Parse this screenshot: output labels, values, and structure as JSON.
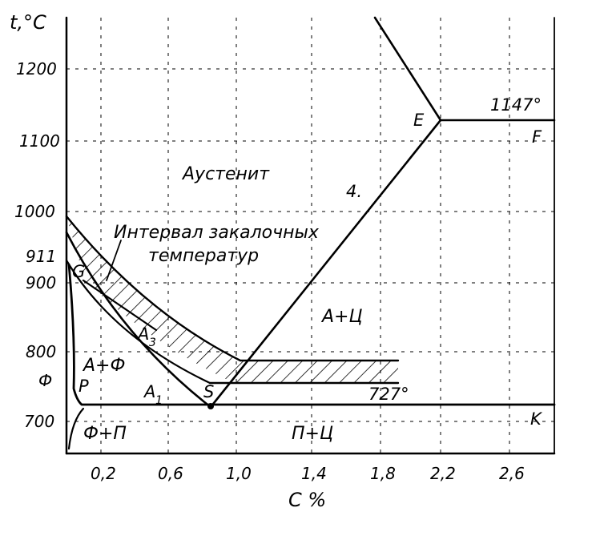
{
  "axes": {
    "y_title": "t,°C",
    "x_title": "C %",
    "y_ticks": [
      "1200",
      "1100",
      "1000",
      "911",
      "900",
      "800",
      "Ф",
      "700"
    ],
    "x_ticks": [
      "0,2",
      "0,6",
      "1,0",
      "1,4",
      "1,8",
      "2,2",
      "2,6"
    ]
  },
  "points": {
    "G": "G",
    "P": "P",
    "S": "S",
    "E": "E",
    "F": "F",
    "K": "K"
  },
  "lines": {
    "A3": "A",
    "A3_sub": "3",
    "A1": "A",
    "A1_sub": "1",
    "Acm": "4."
  },
  "temps": {
    "t1147": "1147°",
    "t727": "727°"
  },
  "zones": {
    "austenite": "Аустенит",
    "a_f": "А+Ф",
    "a_c": "А+Ц",
    "f_p": "Ф+П",
    "p_c": "П+Ц"
  },
  "annotation": {
    "line1": "Интервал закалочных",
    "line2": "температур"
  }
}
